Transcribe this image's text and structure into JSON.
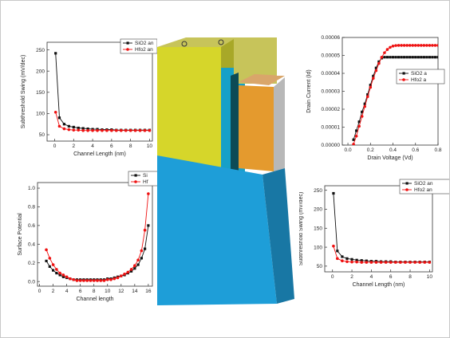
{
  "colors": {
    "black_series": "#111111",
    "red_series": "#ee1111",
    "device_yellow": "#d6d62a",
    "device_blue": "#1e9ed8",
    "device_orange": "#e49a2e",
    "device_gray": "#b8b8b8"
  },
  "device_illustration": {
    "caption": "",
    "kind": "3D transistor structure"
  },
  "chart_data": [
    {
      "type": "line",
      "xlabel": "Channel Length (nm)",
      "ylabel": "Subthreshold Swing (mV/dec)",
      "xticks": [
        "0",
        "2",
        "4",
        "6",
        "8",
        "10"
      ],
      "yticks": [
        "50",
        "100",
        "150",
        "200",
        "250"
      ],
      "xlim": [
        -0.8,
        10.3
      ],
      "ylim": [
        35,
        268
      ],
      "legend": [
        "SiO2 an",
        "Hfo2 an"
      ],
      "series": [
        {
          "name": "SiO2 an",
          "color": "#111111",
          "x": [
            0.1,
            0.5,
            1,
            1.5,
            2,
            2.5,
            3,
            3.5,
            4,
            4.5,
            5,
            5.5,
            6,
            6.5,
            7,
            7.5,
            8,
            8.5,
            9,
            9.5,
            10
          ],
          "y": [
            242,
            90,
            75,
            70,
            68,
            66,
            65,
            64,
            63,
            63,
            62,
            62,
            62,
            61,
            61,
            61,
            61,
            61,
            61,
            61,
            61
          ]
        },
        {
          "name": "Hfo2 an",
          "color": "#ee1111",
          "x": [
            0.1,
            0.5,
            1,
            1.5,
            2,
            2.5,
            3,
            3.5,
            4,
            4.5,
            5,
            5.5,
            6,
            6.5,
            7,
            7.5,
            8,
            8.5,
            9,
            9.5,
            10
          ],
          "y": [
            103,
            70,
            64,
            62,
            61,
            61,
            60,
            60,
            60,
            60,
            60,
            60,
            60,
            60,
            60,
            60,
            60,
            60,
            60,
            60,
            60
          ]
        }
      ]
    },
    {
      "type": "line",
      "xlabel": "Channel length",
      "ylabel": "Surface Potential",
      "xticks": [
        "0",
        "2",
        "4",
        "6",
        "8",
        "10",
        "12",
        "14",
        "16"
      ],
      "yticks": [
        "0.0",
        "0.2",
        "0.4",
        "0.6",
        "0.8",
        "1.0"
      ],
      "xlim": [
        -0.3,
        16.6
      ],
      "ylim": [
        -0.05,
        1.06
      ],
      "legend": [
        "Si",
        "Hf"
      ],
      "series": [
        {
          "name": "Si",
          "color": "#111111",
          "x": [
            1,
            1.5,
            2,
            2.5,
            3,
            3.5,
            4,
            4.5,
            5,
            5.5,
            6,
            6.5,
            7,
            7.5,
            8,
            8.5,
            9,
            9.5,
            10,
            10.5,
            11,
            11.5,
            12,
            12.5,
            13,
            13.5,
            14,
            14.5,
            15,
            15.5,
            16
          ],
          "y": [
            0.22,
            0.16,
            0.12,
            0.09,
            0.07,
            0.05,
            0.04,
            0.03,
            0.02,
            0.02,
            0.02,
            0.02,
            0.02,
            0.02,
            0.02,
            0.02,
            0.02,
            0.02,
            0.03,
            0.03,
            0.04,
            0.05,
            0.06,
            0.07,
            0.09,
            0.11,
            0.14,
            0.18,
            0.25,
            0.35,
            0.6
          ]
        },
        {
          "name": "Hf",
          "color": "#ee1111",
          "x": [
            1,
            1.5,
            2,
            2.5,
            3,
            3.5,
            4,
            4.5,
            5,
            5.5,
            6,
            6.5,
            7,
            7.5,
            8,
            8.5,
            9,
            9.5,
            10,
            10.5,
            11,
            11.5,
            12,
            12.5,
            13,
            13.5,
            14,
            14.5,
            15,
            15.5,
            16
          ],
          "y": [
            0.34,
            0.25,
            0.18,
            0.13,
            0.09,
            0.07,
            0.05,
            0.03,
            0.02,
            0.01,
            0.01,
            0.01,
            0.01,
            0.01,
            0.01,
            0.01,
            0.01,
            0.01,
            0.02,
            0.02,
            0.03,
            0.04,
            0.06,
            0.08,
            0.1,
            0.13,
            0.17,
            0.23,
            0.33,
            0.55,
            0.94
          ]
        }
      ]
    },
    {
      "type": "line",
      "xlabel": "Drain Voltage (Vd)",
      "ylabel": "Drain Current (Id)",
      "xticks": [
        "0.0",
        "0.2",
        "0.4",
        "0.6",
        "0.8"
      ],
      "yticks": [
        "0.00000",
        "0.00001",
        "0.00002",
        "0.00003",
        "0.00004",
        "0.00005",
        "0.00006"
      ],
      "xlim": [
        -0.05,
        0.8
      ],
      "ylim": [
        0.0,
        6e-05
      ],
      "legend": [
        "SiO2 a",
        "Hfo2 a"
      ],
      "series": [
        {
          "name": "SiO2 a",
          "color": "#111111",
          "x": [
            0.05,
            0.075,
            0.1,
            0.125,
            0.15,
            0.175,
            0.2,
            0.225,
            0.25,
            0.275,
            0.3,
            0.325,
            0.35,
            0.375,
            0.4,
            0.425,
            0.45,
            0.475,
            0.5,
            0.525,
            0.55,
            0.575,
            0.6,
            0.625,
            0.65,
            0.675,
            0.7,
            0.725,
            0.75,
            0.775,
            0.8
          ],
          "y": [
            3e-06,
            8e-06,
            1.3e-05,
            1.85e-05,
            2.3e-05,
            2.82e-05,
            3.35e-05,
            3.85e-05,
            4.3e-05,
            4.65e-05,
            4.85e-05,
            4.9e-05,
            4.9e-05,
            4.9e-05,
            4.9e-05,
            4.9e-05,
            4.9e-05,
            4.9e-05,
            4.9e-05,
            4.9e-05,
            4.9e-05,
            4.9e-05,
            4.9e-05,
            4.9e-05,
            4.9e-05,
            4.9e-05,
            4.9e-05,
            4.9e-05,
            4.9e-05,
            4.9e-05,
            4.9e-05
          ]
        },
        {
          "name": "Hfo2 a",
          "color": "#ee1111",
          "x": [
            0.05,
            0.075,
            0.1,
            0.125,
            0.15,
            0.175,
            0.2,
            0.225,
            0.25,
            0.275,
            0.3,
            0.325,
            0.35,
            0.375,
            0.4,
            0.425,
            0.45,
            0.475,
            0.5,
            0.525,
            0.55,
            0.575,
            0.6,
            0.625,
            0.65,
            0.675,
            0.7,
            0.725,
            0.75,
            0.775,
            0.8
          ],
          "y": [
            5e-07,
            5e-06,
            1.05e-05,
            1.6e-05,
            2.15e-05,
            2.7e-05,
            3.22e-05,
            3.72e-05,
            4.15e-05,
            4.55e-05,
            4.9e-05,
            5.15e-05,
            5.33e-05,
            5.45e-05,
            5.52e-05,
            5.55e-05,
            5.56e-05,
            5.56e-05,
            5.56e-05,
            5.56e-05,
            5.56e-05,
            5.56e-05,
            5.56e-05,
            5.56e-05,
            5.56e-05,
            5.56e-05,
            5.56e-05,
            5.56e-05,
            5.56e-05,
            5.56e-05,
            5.56e-05
          ]
        }
      ]
    },
    {
      "type": "line",
      "xlabel": "Channel Length (nm)",
      "ylabel": "Subthreshold Swing (mV/dec)",
      "xticks": [
        "0",
        "2",
        "4",
        "6",
        "8",
        "10"
      ],
      "yticks": [
        "50",
        "100",
        "150",
        "200",
        "250"
      ],
      "xlim": [
        -0.8,
        10.3
      ],
      "ylim": [
        35,
        262
      ],
      "legend": [
        "SiO2 an",
        "Hfo2 an"
      ],
      "series": [
        {
          "name": "SiO2 an",
          "color": "#111111",
          "x": [
            0.1,
            0.5,
            1,
            1.5,
            2,
            2.5,
            3,
            3.5,
            4,
            4.5,
            5,
            5.5,
            6,
            6.5,
            7,
            7.5,
            8,
            8.5,
            9,
            9.5,
            10
          ],
          "y": [
            242,
            90,
            75,
            70,
            68,
            66,
            65,
            64,
            63,
            63,
            62,
            62,
            62,
            61,
            61,
            61,
            61,
            61,
            61,
            61,
            61
          ]
        },
        {
          "name": "Hfo2 an",
          "color": "#ee1111",
          "x": [
            0.1,
            0.5,
            1,
            1.5,
            2,
            2.5,
            3,
            3.5,
            4,
            4.5,
            5,
            5.5,
            6,
            6.5,
            7,
            7.5,
            8,
            8.5,
            9,
            9.5,
            10
          ],
          "y": [
            103,
            70,
            64,
            62,
            61,
            61,
            60,
            60,
            60,
            60,
            60,
            60,
            60,
            60,
            60,
            60,
            60,
            60,
            60,
            60,
            60
          ]
        }
      ]
    }
  ]
}
